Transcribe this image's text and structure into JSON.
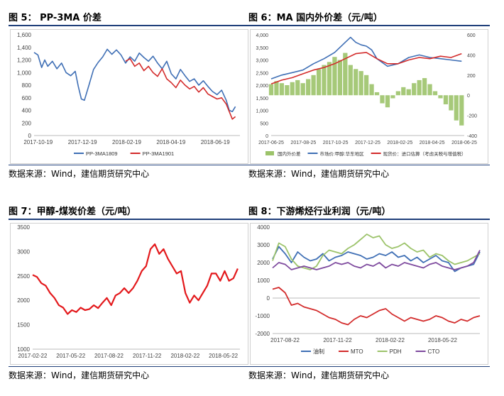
{
  "panels": [
    {
      "title": "图 5： PP-3MA 价差",
      "source": "数据来源：Wind，建信期货研究中心"
    },
    {
      "title": "图 6：MA 国内外价差（元/吨）",
      "source": "数据来源：Wind，建信期货研究中心"
    },
    {
      "title": "图 7：甲醇-煤炭价差（元/吨）",
      "source": "数据来源：Wind，建信期货研究中心"
    },
    {
      "title": "图 8：下游烯烃行业利润（元/吨）",
      "source": "数据来源：Wind，建信期货研究中心"
    }
  ],
  "colors": {
    "blue": "#3f6fb5",
    "red": "#d32b2b",
    "green": "#9cc36a",
    "purple": "#7e4a9e",
    "rule": "#1f3f7a"
  },
  "chart_data": [
    {
      "id": "fig5",
      "type": "line",
      "title": "PP-3MA 价差",
      "ylim": [
        0,
        1600
      ],
      "yticks": [
        "0",
        "200",
        "400",
        "600",
        "800",
        "1,000",
        "1,200",
        "1,400",
        "1,600"
      ],
      "xticks": [
        "2017-10-19",
        "2017-12-19",
        "2018-02-19",
        "2018-04-19",
        "2018-06-19"
      ],
      "x_range": [
        0,
        270
      ],
      "series": [
        {
          "name": "PP-3MA1809",
          "color": "#3f6fb5",
          "x": [
            0,
            5,
            10,
            14,
            18,
            24,
            30,
            36,
            42,
            48,
            54,
            58,
            62,
            66,
            72,
            78,
            84,
            90,
            96,
            102,
            108,
            114,
            120,
            126,
            132,
            138,
            144,
            150,
            156,
            162,
            168,
            174,
            180,
            186,
            192,
            198,
            204,
            210,
            216,
            222,
            228,
            234,
            240,
            246,
            252,
            256,
            260,
            264
          ],
          "y": [
            1320,
            1280,
            1080,
            1200,
            1100,
            1180,
            1060,
            1150,
            1000,
            950,
            1020,
            780,
            580,
            560,
            800,
            1050,
            1160,
            1250,
            1370,
            1290,
            1360,
            1280,
            1150,
            1250,
            1180,
            1310,
            1240,
            1180,
            1260,
            1150,
            1060,
            1180,
            980,
            900,
            1050,
            950,
            860,
            900,
            800,
            870,
            780,
            700,
            650,
            720,
            560,
            400,
            380,
            460
          ]
        },
        {
          "name": "PP-3MA1901",
          "color": "#d32b2b",
          "x": [
            120,
            126,
            132,
            138,
            144,
            150,
            156,
            162,
            168,
            174,
            180,
            186,
            192,
            198,
            204,
            210,
            216,
            222,
            228,
            234,
            240,
            246,
            252,
            256,
            260,
            264
          ],
          "y": [
            1180,
            1220,
            1100,
            1150,
            1030,
            1100,
            1000,
            940,
            1060,
            900,
            840,
            760,
            880,
            800,
            740,
            780,
            690,
            760,
            660,
            620,
            580,
            600,
            500,
            380,
            260,
            300
          ]
        }
      ]
    },
    {
      "id": "fig6",
      "type": "line",
      "title": "MA 国内外价差",
      "ylim_left": [
        0,
        4000
      ],
      "ylim_right": [
        -400,
        600
      ],
      "yticks_left": [
        "0",
        "500",
        "1,000",
        "1,500",
        "2,000",
        "2,500",
        "3,000",
        "3,500",
        "4,000"
      ],
      "yticks_right": [
        "-400",
        "-200",
        "0",
        "200",
        "400",
        "600"
      ],
      "xticks": [
        "2017-06-25",
        "2017-08-25",
        "2017-10-25",
        "2017-12-25",
        "2018-02-25",
        "2018-04-25",
        "2018-06-25"
      ],
      "x_range": [
        0,
        365
      ],
      "series": [
        {
          "name": "国内外价差",
          "axis": "right",
          "kind": "bar",
          "color": "#9cc36a",
          "x": [
            0,
            10,
            20,
            30,
            40,
            50,
            60,
            70,
            80,
            90,
            100,
            110,
            120,
            130,
            140,
            150,
            160,
            170,
            180,
            190,
            200,
            210,
            220,
            230,
            240,
            250,
            260,
            270,
            280,
            290,
            300,
            310,
            320,
            330,
            340,
            350,
            360
          ],
          "y": [
            110,
            140,
            120,
            100,
            130,
            150,
            120,
            160,
            200,
            260,
            300,
            330,
            380,
            350,
            420,
            300,
            260,
            240,
            200,
            110,
            30,
            -80,
            -120,
            -30,
            40,
            80,
            60,
            120,
            150,
            170,
            110,
            40,
            -30,
            -90,
            -150,
            -250,
            -300
          ]
        },
        {
          "name": "市场价:甲醇:华东地区",
          "axis": "left",
          "color": "#3f6fb5",
          "x": [
            0,
            20,
            40,
            60,
            80,
            100,
            120,
            140,
            150,
            160,
            170,
            180,
            190,
            200,
            220,
            240,
            260,
            280,
            300,
            320,
            340,
            360
          ],
          "y": [
            2250,
            2400,
            2500,
            2600,
            2850,
            3050,
            3300,
            3700,
            3900,
            3700,
            3600,
            3550,
            3400,
            3050,
            2750,
            2850,
            3100,
            3200,
            3100,
            3050,
            3000,
            2950
          ]
        },
        {
          "name": "现货价：进口估算（考虑关税与增值税）",
          "axis": "left",
          "color": "#d32b2b",
          "x": [
            0,
            20,
            40,
            60,
            80,
            100,
            120,
            140,
            160,
            180,
            200,
            220,
            240,
            260,
            280,
            300,
            320,
            340,
            360
          ],
          "y": [
            2050,
            2200,
            2300,
            2450,
            2600,
            2700,
            2850,
            3050,
            3250,
            3300,
            3050,
            2850,
            2850,
            3000,
            3100,
            3050,
            3150,
            3100,
            3250
          ]
        }
      ]
    },
    {
      "id": "fig7",
      "type": "line",
      "title": "甲醇-煤炭价差",
      "ylim": [
        1000,
        3500
      ],
      "yticks": [
        "1000",
        "1500",
        "2000",
        "2500",
        "3000",
        "3500"
      ],
      "xticks": [
        "2017-02-22",
        "2017-05-22",
        "2017-08-22",
        "2017-11-22",
        "2018-02-22",
        "2018-05-22"
      ],
      "x_range": [
        0,
        475
      ],
      "series": [
        {
          "name": "甲醇-煤炭价差",
          "color": "#e3191c",
          "x": [
            0,
            10,
            20,
            30,
            40,
            50,
            60,
            70,
            80,
            90,
            100,
            110,
            120,
            130,
            140,
            150,
            160,
            170,
            180,
            190,
            200,
            210,
            220,
            230,
            240,
            250,
            260,
            270,
            280,
            290,
            300,
            310,
            320,
            330,
            340,
            350,
            360,
            370,
            380,
            390,
            400,
            410,
            420,
            430,
            440,
            450,
            460,
            470
          ],
          "y": [
            2520,
            2480,
            2350,
            2300,
            2150,
            2050,
            1900,
            1850,
            1720,
            1800,
            1760,
            1850,
            1800,
            1820,
            1900,
            1840,
            1950,
            2050,
            1900,
            2100,
            2150,
            2250,
            2150,
            2250,
            2400,
            2600,
            2700,
            3050,
            3150,
            2950,
            3050,
            2850,
            2700,
            2550,
            2600,
            2150,
            1950,
            2100,
            2000,
            2150,
            2300,
            2550,
            2550,
            2400,
            2600,
            2400,
            2450,
            2650
          ]
        }
      ]
    },
    {
      "id": "fig8",
      "type": "line",
      "title": "下游烯烃行业利润",
      "ylim": [
        -2000,
        4000
      ],
      "yticks": [
        "-2000",
        "-1000",
        "0",
        "1000",
        "2000",
        "3000",
        "4000"
      ],
      "xticks": [
        "2017-08-22",
        "2017-11-22",
        "2018-02-22",
        "2018-05-22"
      ],
      "x_range": [
        0,
        330
      ],
      "series": [
        {
          "name": "油制",
          "color": "#3f6fb5",
          "x": [
            0,
            10,
            20,
            30,
            40,
            50,
            60,
            70,
            80,
            90,
            100,
            110,
            120,
            130,
            140,
            150,
            160,
            170,
            180,
            190,
            200,
            210,
            220,
            230,
            240,
            250,
            260,
            270,
            280,
            290,
            300,
            310,
            320,
            330
          ],
          "y": [
            2200,
            2900,
            2500,
            2000,
            2600,
            2300,
            2100,
            2200,
            2500,
            2100,
            2300,
            2400,
            2600,
            2500,
            2400,
            2200,
            2300,
            2500,
            2400,
            2600,
            2300,
            2400,
            2100,
            2300,
            2000,
            2200,
            2400,
            2100,
            2000,
            1500,
            1700,
            1800,
            1900,
            2600
          ]
        },
        {
          "name": "MTO",
          "color": "#d32b2b",
          "x": [
            0,
            10,
            20,
            30,
            40,
            50,
            60,
            70,
            80,
            90,
            100,
            110,
            120,
            130,
            140,
            150,
            160,
            170,
            180,
            190,
            200,
            210,
            220,
            230,
            240,
            250,
            260,
            270,
            280,
            290,
            300,
            310,
            320,
            330
          ],
          "y": [
            500,
            600,
            300,
            -400,
            -300,
            -500,
            -600,
            -700,
            -900,
            -1100,
            -1200,
            -1400,
            -1500,
            -1200,
            -1000,
            -1100,
            -900,
            -700,
            -600,
            -900,
            -1100,
            -1300,
            -1100,
            -1200,
            -1300,
            -1200,
            -1000,
            -1100,
            -1300,
            -1400,
            -1200,
            -1300,
            -1100,
            -1000
          ]
        },
        {
          "name": "PDH",
          "color": "#9cc36a",
          "x": [
            0,
            10,
            20,
            30,
            40,
            50,
            60,
            70,
            80,
            90,
            100,
            110,
            120,
            130,
            140,
            150,
            160,
            170,
            180,
            190,
            200,
            210,
            220,
            230,
            240,
            250,
            260,
            270,
            280,
            290,
            300,
            310,
            320,
            330
          ],
          "y": [
            2100,
            3100,
            2900,
            2200,
            1800,
            1700,
            1600,
            1800,
            2400,
            2700,
            2600,
            2500,
            2800,
            3000,
            3300,
            3600,
            3400,
            3500,
            3000,
            2800,
            2900,
            3100,
            2800,
            2600,
            2700,
            2300,
            2500,
            2400,
            2100,
            1900,
            2000,
            2100,
            2300,
            2500
          ]
        },
        {
          "name": "CTO",
          "color": "#7e4a9e",
          "x": [
            0,
            10,
            20,
            30,
            40,
            50,
            60,
            70,
            80,
            90,
            100,
            110,
            120,
            130,
            140,
            150,
            160,
            170,
            180,
            190,
            200,
            210,
            220,
            230,
            240,
            250,
            260,
            270,
            280,
            290,
            300,
            310,
            320,
            330
          ],
          "y": [
            1700,
            2000,
            1900,
            1600,
            1700,
            1800,
            1700,
            1600,
            1700,
            1800,
            2000,
            1900,
            2000,
            1800,
            1700,
            1900,
            1800,
            2000,
            1700,
            1900,
            1800,
            2000,
            1900,
            1800,
            1700,
            1900,
            2000,
            1800,
            1700,
            1600,
            1700,
            1800,
            2000,
            2700
          ]
        }
      ]
    }
  ]
}
